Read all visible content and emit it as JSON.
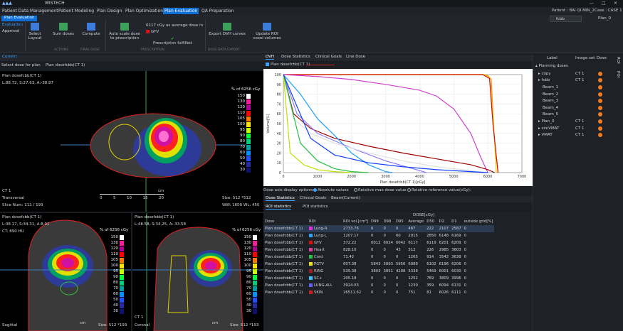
{
  "app": {
    "title": "WISTECH",
    "window_controls": [
      "—",
      "□",
      "✕"
    ]
  },
  "menu": {
    "items": [
      "Patient Data Management",
      "Patient Modeling",
      "Plan Design",
      "Plan Optimization",
      "Plan Evaluation",
      "QA Preparation"
    ],
    "active_index": 4
  },
  "patient": {
    "label": "Patient : BAI QI MIN_2",
    "case_label": "Case : CASE 1",
    "case_select": "fcbb",
    "plan_label": "Plan_0"
  },
  "ribbon": {
    "tab": "Plan Evaluation",
    "approval_tab": "Evaluation",
    "approval": "Approval",
    "select_layout": "Select Layout",
    "sum_doses": "Sum doses",
    "compute": "Compute",
    "auto_scale": "Auto scale dose to prescription",
    "prescription_text": "6117 cGy as average dose in",
    "prescription_roi": "GTV",
    "prescription_status": "Prescription fulfilled",
    "export_dvh": "Export DVH curves",
    "update_roi": "Update ROI voxel volumes",
    "groups": {
      "actions": "ACTIONS",
      "final_dose": "FINAL DOSE",
      "prescription": "PRESCRIPTION",
      "dose_export": "DOSE DATA EXPORT"
    }
  },
  "left": {
    "tab": "Current",
    "select_dose_label": "Select dose for plan",
    "select_dose_value": "Plan dosefcbb(CT 1)"
  },
  "view_top": {
    "title": "Plan dosefcbb(CT 1)",
    "coords": "L:88.72, S:27.63, A:-38.87",
    "legend_title": "% of 6256 cGy",
    "ct": "CT 1",
    "orientation": "Transversal",
    "slice": "Slice Num: 111 / 193",
    "size": "Size: 512  *512",
    "ww": "WW: 1600  WL: 450",
    "scale_unit": "cm",
    "scale_ticks": [
      "0",
      "5",
      "10",
      "15",
      "20"
    ]
  },
  "view_bl": {
    "title": "Plan dosefcbb(CT 1)",
    "coords": "L:38.17, S:34.31, A:8.91",
    "ct_value": "CT: 890 HU",
    "legend_title": "% of 6256 cGy",
    "orientation": "Sagittal",
    "size": "Size: 512  *193",
    "scale_unit": "cm"
  },
  "view_br": {
    "title": "Plan dosefcbb(CT 1)",
    "coords": "L:48.58, S:34.25, A:-33.58",
    "legend_title": "% of 6256 cGy",
    "ct": "CT 1",
    "orientation": "Coronal",
    "size": "Size: 512  *193",
    "scale_unit": "cm"
  },
  "legend": {
    "labels": [
      "150",
      "130",
      "120",
      "110",
      "105",
      "100",
      "95",
      "90",
      "80",
      "70",
      "60",
      "50",
      "40",
      "30"
    ],
    "colors": [
      "#ffffff",
      "#ff1a9c",
      "#b0009a",
      "#ff0000",
      "#ff7a00",
      "#ffe600",
      "#c8ff00",
      "#00ff3a",
      "#00d07a",
      "#00a0a0",
      "#0090ff",
      "#2050ff",
      "#2a2aa0",
      "#101070"
    ]
  },
  "right": {
    "tabs": [
      "DVH",
      "Dose Statistics",
      "Clinical Goals",
      "Line Dose"
    ],
    "active_tab": 0,
    "dvh_plan": "Plan dosefcbb(CT 1)",
    "display_label": "Dose axis display options:",
    "display_options": [
      "Absolute values",
      "Relative max dose value",
      "Relative reference value(cGy):"
    ],
    "display_selected": 0,
    "lower_tabs": [
      "Dose Statistics",
      "Clinical Goals",
      "Beam(Current)"
    ],
    "stat_tabs": [
      "ROI statistics",
      "POI statistics"
    ]
  },
  "chart_data": {
    "type": "line",
    "xlabel": "Plan dosefcbb(CT 1)[cGy]",
    "ylabel": "Volume[%]",
    "xlim": [
      0,
      7000
    ],
    "ylim": [
      0,
      100
    ],
    "xticks": [
      "0",
      "1000",
      "2000",
      "3000",
      "4000",
      "5000",
      "6000",
      "7000"
    ],
    "yticks": [
      "0",
      "10",
      "20",
      "30",
      "40",
      "50",
      "60",
      "70",
      "80",
      "90",
      "100"
    ],
    "series": [
      {
        "color": "#ff8c00",
        "x": [
          0,
          5800,
          6000,
          6100,
          6200,
          6300
        ],
        "y": [
          100,
          100,
          99,
          95,
          30,
          0
        ]
      },
      {
        "color": "#e8d000",
        "x": [
          0,
          5900,
          6050,
          6150,
          6250
        ],
        "y": [
          100,
          100,
          97,
          60,
          0
        ]
      },
      {
        "color": "#d01010",
        "x": [
          0,
          5850,
          6050,
          6150,
          6300
        ],
        "y": [
          100,
          100,
          96,
          50,
          0
        ]
      },
      {
        "color": "#d040d0",
        "x": [
          0,
          1000,
          2000,
          3000,
          4000,
          4500,
          5000,
          5500,
          5800,
          6000
        ],
        "y": [
          100,
          98,
          95,
          90,
          84,
          78,
          65,
          40,
          15,
          0
        ]
      },
      {
        "color": "#a00000",
        "x": [
          0,
          300,
          800,
          1500,
          2500,
          3500,
          4500,
          5500,
          6000,
          6200
        ],
        "y": [
          100,
          60,
          45,
          35,
          27,
          20,
          14,
          8,
          3,
          0
        ]
      },
      {
        "color": "#1ea0ff",
        "x": [
          0,
          500,
          1000,
          1500,
          2000,
          2500,
          3000,
          3200
        ],
        "y": [
          100,
          80,
          55,
          38,
          20,
          8,
          1,
          0
        ]
      },
      {
        "color": "#8a7cff",
        "x": [
          0,
          400,
          1000,
          2000,
          3000,
          3800,
          4200
        ],
        "y": [
          100,
          60,
          40,
          25,
          12,
          4,
          0
        ]
      },
      {
        "color": "#e0e0e0",
        "x": [
          0,
          300,
          800,
          1500,
          2500,
          3500,
          4500,
          5500,
          6000
        ],
        "y": [
          100,
          55,
          40,
          30,
          20,
          12,
          6,
          2,
          0
        ]
      },
      {
        "color": "#22c040",
        "x": [
          0,
          500,
          1000,
          1500,
          2000,
          2500
        ],
        "y": [
          100,
          30,
          12,
          4,
          1,
          0
        ]
      },
      {
        "color": "#c0e000",
        "x": [
          0,
          200,
          600,
          1000,
          1500,
          2000
        ],
        "y": [
          100,
          20,
          8,
          3,
          1,
          0
        ]
      },
      {
        "color": "#1040ff",
        "x": [
          0,
          800,
          1500,
          2500,
          3500,
          4500,
          5500,
          6000
        ],
        "y": [
          100,
          35,
          18,
          10,
          6,
          3,
          1,
          0
        ]
      }
    ]
  },
  "stats": {
    "headers": [
      "Dose",
      "ROI",
      "ROI vol.[cm³]",
      "D99",
      "D98",
      "D95",
      "Average",
      "D50",
      "D2",
      "D1",
      "outside grid[%]"
    ],
    "group_header": "DOSE[cGy]",
    "rows": [
      {
        "dose": "Plan dosefcbb(CT 1)",
        "roi": "Lung-R",
        "color": "#e030e0",
        "vol": "2733.76",
        "d99": "0",
        "d98": "0",
        "d95": "0",
        "avg": "487",
        "d50": "222",
        "d2": "2107",
        "d1": "2587",
        "out": "0"
      },
      {
        "dose": "Plan dosefcbb(CT 1)",
        "roi": "Lung-L",
        "color": "#30a0ff",
        "vol": "1207.17",
        "d99": "0",
        "d98": "0",
        "d95": "60",
        "avg": "2915",
        "d50": "2850",
        "d2": "6148",
        "d1": "6169",
        "out": "0"
      },
      {
        "dose": "Plan dosefcbb(CT 1)",
        "roi": "GTV",
        "color": "#e01010",
        "vol": "372.22",
        "d99": "6012",
        "d98": "6024",
        "d95": "6042",
        "avg": "6117",
        "d50": "6119",
        "d2": "6201",
        "d1": "6209",
        "out": "0"
      },
      {
        "dose": "Plan dosefcbb(CT 1)",
        "roi": "Heart",
        "color": "#e040a0",
        "vol": "828.10",
        "d99": "0",
        "d98": "0",
        "d95": "43",
        "avg": "512",
        "d50": "226",
        "d2": "2985",
        "d1": "3603",
        "out": "0"
      },
      {
        "dose": "Plan dosefcbb(CT 1)",
        "roi": "Cord",
        "color": "#30c040",
        "vol": "71.42",
        "d99": "0",
        "d98": "0",
        "d95": "0",
        "avg": "1265",
        "d50": "914",
        "d2": "3542",
        "d1": "3638",
        "out": "0"
      },
      {
        "dose": "Plan dosefcbb(CT 1)",
        "roi": "PGTV",
        "color": "#f0e020",
        "vol": "607.38",
        "d99": "5843",
        "d98": "5893",
        "d95": "5956",
        "avg": "6089",
        "d50": "6102",
        "d2": "6196",
        "d1": "6206",
        "out": "0"
      },
      {
        "dose": "Plan dosefcbb(CT 1)",
        "roi": "RING",
        "color": "#a02020",
        "vol": "535.38",
        "d99": "3803",
        "d98": "3851",
        "d95": "4298",
        "avg": "5338",
        "d50": "5469",
        "d2": "6001",
        "d1": "6030",
        "out": "0"
      },
      {
        "dose": "Plan dosefcbb(CT 1)",
        "roi": "SC+",
        "color": "#40c0ff",
        "vol": "205.18",
        "d99": "0",
        "d98": "0",
        "d95": "0",
        "avg": "1252",
        "d50": "769",
        "d2": "3809",
        "d1": "3996",
        "out": "0"
      },
      {
        "dose": "Plan dosefcbb(CT 1)",
        "roi": "LUNG-ALL",
        "color": "#6060ff",
        "vol": "3924.03",
        "d99": "0",
        "d98": "0",
        "d95": "0",
        "avg": "1230",
        "d50": "359",
        "d2": "6094",
        "d1": "6131",
        "out": "0"
      },
      {
        "dose": "Plan dosefcbb(CT 1)",
        "roi": "SKIN",
        "color": "#d02020",
        "vol": "26511.62",
        "d99": "0",
        "d98": "0",
        "d95": "0",
        "avg": "751",
        "d50": "81",
        "d2": "6026",
        "d1": "6111",
        "out": "0"
      }
    ]
  },
  "tree": {
    "headers": [
      "Label",
      "Image set",
      "Dose"
    ],
    "root": "Planning doses",
    "items": [
      {
        "label": "copy",
        "image_set": "CT 1",
        "indent": 1,
        "dose": true
      },
      {
        "label": "fcbb",
        "image_set": "CT 1",
        "indent": 1,
        "dose": true
      },
      {
        "label": "Beam_1",
        "image_set": "",
        "indent": 2,
        "dose": true
      },
      {
        "label": "Beam_2",
        "image_set": "",
        "indent": 2,
        "dose": true
      },
      {
        "label": "Beam_3",
        "image_set": "",
        "indent": 2,
        "dose": true
      },
      {
        "label": "Beam_4",
        "image_set": "",
        "indent": 2,
        "dose": true
      },
      {
        "label": "Beam_5",
        "image_set": "",
        "indent": 2,
        "dose": true
      },
      {
        "label": "Plan_0",
        "image_set": "CT 1",
        "indent": 1,
        "dose": true
      },
      {
        "label": "simVMAT",
        "image_set": "CT 1",
        "indent": 1,
        "dose": true
      },
      {
        "label": "VMAT",
        "image_set": "CT 1",
        "indent": 1,
        "dose": true
      }
    ],
    "side_tabs": [
      "ROI",
      "POI"
    ]
  }
}
